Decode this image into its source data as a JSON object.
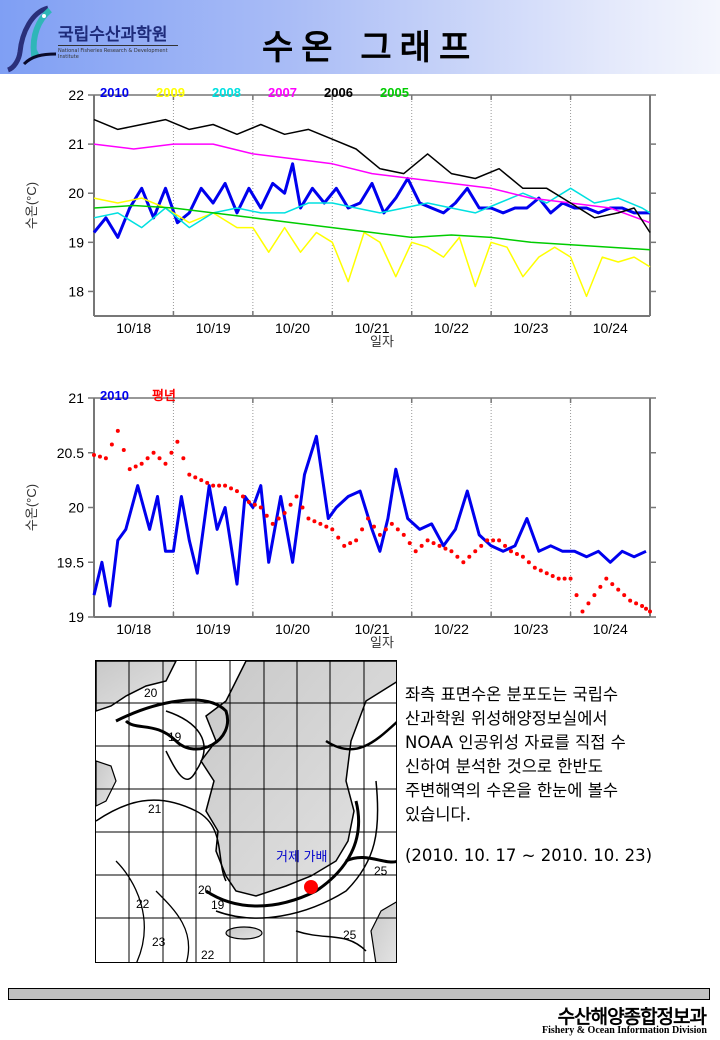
{
  "header": {
    "logo_text": "국립수산과학원",
    "logo_subtext": "National Fisheries Research & Development Institute",
    "title": "수온 그래프"
  },
  "chart_data": [
    {
      "type": "line",
      "title": "",
      "xlabel": "일자",
      "ylabel": "수온(°C)",
      "ylim": [
        17.5,
        22
      ],
      "xlim": [
        0,
        7
      ],
      "x_ticks": [
        "10/18",
        "10/19",
        "10/20",
        "10/21",
        "10/22",
        "10/23",
        "10/24"
      ],
      "y_ticks": [
        18,
        19,
        20,
        21,
        22
      ],
      "grid": "vertical-dotted",
      "legend_position": "top-left",
      "x_units": "days since 10/17 12:00 (approx)",
      "series": [
        {
          "name": "2010",
          "color": "#0000ee",
          "width": 3,
          "x": [
            0,
            0.15,
            0.3,
            0.45,
            0.6,
            0.75,
            0.9,
            1.05,
            1.2,
            1.35,
            1.5,
            1.65,
            1.8,
            1.95,
            2.1,
            2.25,
            2.4,
            2.5,
            2.6,
            2.75,
            2.9,
            3.05,
            3.2,
            3.35,
            3.5,
            3.65,
            3.8,
            3.95,
            4.1,
            4.25,
            4.4,
            4.55,
            4.7,
            4.85,
            5.0,
            5.15,
            5.3,
            5.45,
            5.6,
            5.75,
            5.9,
            6.05,
            6.2,
            6.35,
            6.5,
            6.65,
            6.8,
            7.0
          ],
          "y": [
            19.2,
            19.5,
            19.1,
            19.7,
            20.1,
            19.5,
            20.1,
            19.4,
            19.6,
            20.1,
            19.8,
            20.2,
            19.6,
            20.1,
            19.7,
            20.2,
            20.0,
            20.6,
            19.7,
            20.1,
            19.8,
            20.1,
            19.7,
            19.8,
            20.2,
            19.6,
            19.9,
            20.3,
            19.8,
            19.7,
            19.6,
            19.8,
            20.1,
            19.7,
            19.7,
            19.6,
            19.7,
            19.7,
            19.9,
            19.6,
            19.8,
            19.7,
            19.7,
            19.6,
            19.7,
            19.7,
            19.6,
            19.6
          ]
        },
        {
          "name": "2009",
          "color": "#ffff00",
          "width": 1.5,
          "x": [
            0,
            0.3,
            0.6,
            0.9,
            1.2,
            1.5,
            1.8,
            2.0,
            2.2,
            2.4,
            2.6,
            2.8,
            3.0,
            3.2,
            3.4,
            3.6,
            3.8,
            4.0,
            4.2,
            4.4,
            4.6,
            4.8,
            5.0,
            5.2,
            5.4,
            5.6,
            5.8,
            6.0,
            6.2,
            6.4,
            6.6,
            6.8,
            7.0
          ],
          "y": [
            19.9,
            19.8,
            19.9,
            19.7,
            19.4,
            19.6,
            19.3,
            19.3,
            18.8,
            19.3,
            18.8,
            19.2,
            19.0,
            18.2,
            19.2,
            19.0,
            18.3,
            19.0,
            18.9,
            18.7,
            19.1,
            18.1,
            19.0,
            18.9,
            18.3,
            18.7,
            18.9,
            18.7,
            17.9,
            18.7,
            18.6,
            18.7,
            18.5
          ]
        },
        {
          "name": "2008",
          "color": "#00e0e0",
          "width": 1.5,
          "x": [
            0,
            0.3,
            0.6,
            0.9,
            1.2,
            1.5,
            1.8,
            2.1,
            2.4,
            2.7,
            3.0,
            3.3,
            3.6,
            3.9,
            4.2,
            4.5,
            4.8,
            5.1,
            5.4,
            5.7,
            6.0,
            6.3,
            6.6,
            6.9,
            7.0
          ],
          "y": [
            19.5,
            19.6,
            19.3,
            19.7,
            19.3,
            19.6,
            19.7,
            19.6,
            19.6,
            19.8,
            19.8,
            19.7,
            19.6,
            19.7,
            19.8,
            19.7,
            19.6,
            19.8,
            20.0,
            19.8,
            20.1,
            19.8,
            19.9,
            19.7,
            19.6
          ]
        },
        {
          "name": "2007",
          "color": "#ff00ff",
          "width": 1.5,
          "x": [
            0,
            0.5,
            1.0,
            1.5,
            2.0,
            2.5,
            3.0,
            3.5,
            4.0,
            4.5,
            5.0,
            5.5,
            6.0,
            6.5,
            7.0
          ],
          "y": [
            21.0,
            20.9,
            21.0,
            21.0,
            20.8,
            20.7,
            20.6,
            20.4,
            20.3,
            20.2,
            20.1,
            19.9,
            19.8,
            19.7,
            19.4
          ]
        },
        {
          "name": "2006",
          "color": "#000000",
          "width": 1.5,
          "x": [
            0,
            0.3,
            0.6,
            0.9,
            1.2,
            1.5,
            1.8,
            2.1,
            2.4,
            2.7,
            3.0,
            3.3,
            3.6,
            3.9,
            4.2,
            4.5,
            4.8,
            5.1,
            5.4,
            5.7,
            6.0,
            6.3,
            6.6,
            6.8,
            7.0
          ],
          "y": [
            21.5,
            21.3,
            21.4,
            21.5,
            21.3,
            21.4,
            21.2,
            21.4,
            21.2,
            21.3,
            21.1,
            20.9,
            20.5,
            20.4,
            20.8,
            20.4,
            20.3,
            20.5,
            20.1,
            20.1,
            19.8,
            19.5,
            19.6,
            19.7,
            19.2
          ]
        },
        {
          "name": "2005",
          "color": "#00cc00",
          "width": 1.5,
          "x": [
            0,
            0.5,
            1.0,
            1.5,
            2.0,
            2.5,
            3.0,
            3.5,
            4.0,
            4.5,
            5.0,
            5.5,
            6.0,
            6.5,
            7.0
          ],
          "y": [
            19.7,
            19.75,
            19.7,
            19.6,
            19.5,
            19.4,
            19.3,
            19.2,
            19.1,
            19.15,
            19.1,
            19.0,
            18.95,
            18.9,
            18.85
          ]
        }
      ]
    },
    {
      "type": "line",
      "title": "",
      "xlabel": "일자",
      "ylabel": "수온(°C)",
      "ylim": [
        19,
        21
      ],
      "xlim": [
        0,
        7
      ],
      "x_ticks": [
        "10/18",
        "10/19",
        "10/20",
        "10/21",
        "10/22",
        "10/23",
        "10/24"
      ],
      "y_ticks": [
        19,
        19.5,
        20,
        20.5,
        21
      ],
      "grid": "vertical-dotted",
      "legend_position": "top-left",
      "series": [
        {
          "name": "2010",
          "color": "#0000ee",
          "style": "line",
          "x": [
            0,
            0.1,
            0.2,
            0.3,
            0.4,
            0.55,
            0.7,
            0.8,
            0.9,
            1.0,
            1.1,
            1.2,
            1.3,
            1.45,
            1.55,
            1.65,
            1.8,
            1.9,
            2.0,
            2.1,
            2.2,
            2.35,
            2.5,
            2.65,
            2.8,
            2.95,
            3.05,
            3.2,
            3.35,
            3.5,
            3.6,
            3.7,
            3.8,
            3.95,
            4.1,
            4.25,
            4.4,
            4.55,
            4.7,
            4.85,
            5.0,
            5.15,
            5.3,
            5.45,
            5.6,
            5.75,
            5.9,
            6.05,
            6.2,
            6.35,
            6.5,
            6.65,
            6.8,
            6.95
          ],
          "y": [
            19.2,
            19.5,
            19.1,
            19.7,
            19.8,
            20.2,
            19.8,
            20.1,
            19.6,
            19.6,
            20.1,
            19.7,
            19.4,
            20.2,
            19.8,
            20.0,
            19.3,
            20.1,
            20.0,
            20.2,
            19.5,
            20.1,
            19.5,
            20.3,
            20.65,
            19.9,
            20.0,
            20.1,
            20.15,
            19.8,
            19.6,
            19.9,
            20.35,
            19.9,
            19.8,
            19.85,
            19.65,
            19.8,
            20.15,
            19.75,
            19.65,
            19.6,
            19.65,
            19.9,
            19.6,
            19.65,
            19.6,
            19.6,
            19.55,
            19.6,
            19.5,
            19.6,
            19.55,
            19.6
          ]
        },
        {
          "name": "평년",
          "color": "#ff0000",
          "style": "dots",
          "x": [
            0,
            0.15,
            0.3,
            0.45,
            0.6,
            0.75,
            0.9,
            1.05,
            1.2,
            1.35,
            1.5,
            1.65,
            1.8,
            1.95,
            2.1,
            2.25,
            2.4,
            2.55,
            2.7,
            2.85,
            3.0,
            3.15,
            3.3,
            3.45,
            3.6,
            3.75,
            3.9,
            4.05,
            4.2,
            4.35,
            4.5,
            4.65,
            4.8,
            4.95,
            5.1,
            5.25,
            5.4,
            5.55,
            5.7,
            5.85,
            6.0,
            6.15,
            6.3,
            6.45,
            6.6,
            6.75,
            6.9,
            7.0
          ],
          "y": [
            20.48,
            20.45,
            20.7,
            20.35,
            20.4,
            20.5,
            20.4,
            20.6,
            20.3,
            20.25,
            20.2,
            20.2,
            20.15,
            20.05,
            20.0,
            19.85,
            19.95,
            20.1,
            19.9,
            19.85,
            19.8,
            19.65,
            19.7,
            19.9,
            19.75,
            19.85,
            19.75,
            19.6,
            19.7,
            19.65,
            19.6,
            19.5,
            19.6,
            19.7,
            19.7,
            19.6,
            19.55,
            19.45,
            19.4,
            19.35,
            19.35,
            19.05,
            19.2,
            19.35,
            19.25,
            19.15,
            19.1,
            19.05
          ]
        }
      ]
    }
  ],
  "map": {
    "label": "거제 가배",
    "marker_color": "#ff0000",
    "contour_labels": [
      "20",
      "19",
      "21",
      "22",
      "23",
      "22",
      "20",
      "19",
      "25",
      "25"
    ]
  },
  "description": {
    "lines": [
      "좌측 표면수온 분포도는 국립수",
      "산과학원 위성해양정보실에서",
      "NOAA 인공위성 자료를 직접 수",
      "신하여 분석한 것으로  한반도",
      "주변해역의 수온을 한눈에 볼수",
      "있습니다."
    ],
    "date_range": "(2010. 10. 17 ~ 2010. 10. 23)"
  },
  "footer": {
    "title_ko": "수산해양종합정보과",
    "title_en": "Fishery & Ocean Information Division"
  }
}
